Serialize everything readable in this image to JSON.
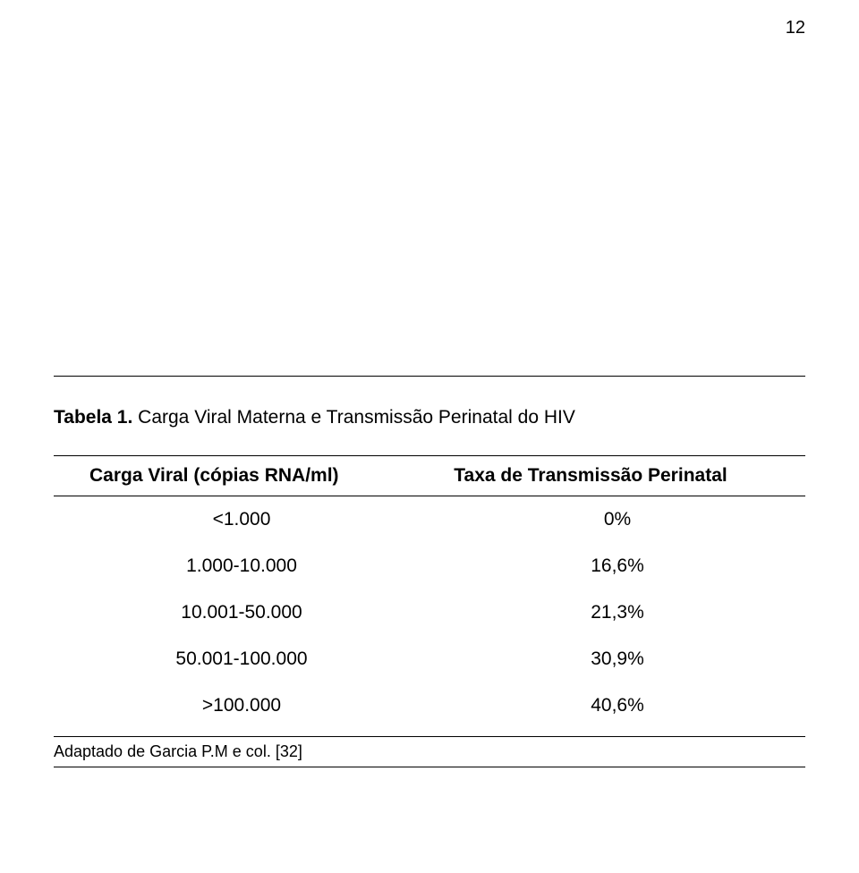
{
  "page_number": "12",
  "table_title_bold": "Tabela 1.",
  "table_title_rest": " Carga Viral Materna e Transmissão Perinatal do HIV",
  "headers": {
    "col1": "Carga Viral (cópias RNA/ml)",
    "col2": "Taxa de Transmissão Perinatal"
  },
  "rows": [
    {
      "col1": "<1.000",
      "col2": "0%"
    },
    {
      "col1": "1.000-10.000",
      "col2": "16,6%"
    },
    {
      "col1": "10.001-50.000",
      "col2": "21,3%"
    },
    {
      "col1": "50.001-100.000",
      "col2": "30,9%"
    },
    {
      "col1": ">100.000",
      "col2": "40,6%"
    }
  ],
  "caption": "Adaptado de Garcia P.M e col. [32]",
  "background_color": "#ffffff",
  "text_color": "#000000",
  "rule_color": "#000000"
}
